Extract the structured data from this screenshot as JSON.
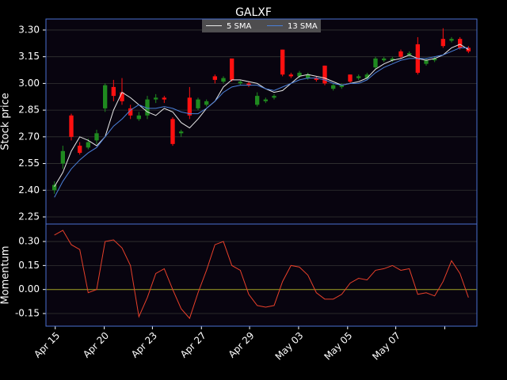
{
  "chart_data": [
    {
      "type": "candlestick",
      "title": "GALXF",
      "ylabel": "Stock price",
      "x": [
        0,
        1,
        2,
        3,
        4,
        5,
        6,
        7,
        8,
        9,
        10,
        11,
        12,
        13,
        14,
        15,
        16,
        17,
        18,
        19,
        20,
        21,
        22,
        23,
        24,
        25,
        26,
        27,
        28,
        29,
        30,
        31,
        32,
        33,
        34,
        35,
        36,
        37,
        38,
        39,
        40,
        41,
        42,
        43,
        44,
        45,
        46,
        47,
        48,
        49
      ],
      "open": [
        2.4,
        2.55,
        2.82,
        2.65,
        2.64,
        2.68,
        2.86,
        2.98,
        2.95,
        2.86,
        2.8,
        2.82,
        2.91,
        2.92,
        2.8,
        2.72,
        2.92,
        2.86,
        2.88,
        3.04,
        3.01,
        3.14,
        3.0,
        3.0,
        2.88,
        2.9,
        2.92,
        3.19,
        3.05,
        3.04,
        3.03,
        3.03,
        3.1,
        2.97,
        2.98,
        3.05,
        3.03,
        3.03,
        3.09,
        3.13,
        3.13,
        3.18,
        3.16,
        3.22,
        3.11,
        3.13,
        3.25,
        3.24,
        3.25,
        3.2
      ],
      "high": [
        2.45,
        2.65,
        2.83,
        2.67,
        2.69,
        2.74,
        3.0,
        3.02,
        3.03,
        2.88,
        2.84,
        2.93,
        2.94,
        2.93,
        2.81,
        2.74,
        2.98,
        2.92,
        2.91,
        3.05,
        3.04,
        3.14,
        3.02,
        3.01,
        2.95,
        2.92,
        2.94,
        3.19,
        3.06,
        3.07,
        3.06,
        3.04,
        3.1,
        3.0,
        3.0,
        3.05,
        3.05,
        3.06,
        3.15,
        3.15,
        3.15,
        3.19,
        3.18,
        3.26,
        3.14,
        3.15,
        3.31,
        3.26,
        3.26,
        3.21
      ],
      "low": [
        2.38,
        2.52,
        2.68,
        2.6,
        2.63,
        2.66,
        2.84,
        2.9,
        2.88,
        2.8,
        2.79,
        2.8,
        2.89,
        2.89,
        2.65,
        2.7,
        2.8,
        2.85,
        2.87,
        3.0,
        3.0,
        3.01,
        2.99,
        2.98,
        2.87,
        2.89,
        2.91,
        3.04,
        3.03,
        3.03,
        3.02,
        3.01,
        2.99,
        2.96,
        2.97,
        3.0,
        3.02,
        3.02,
        3.08,
        3.12,
        3.12,
        3.14,
        3.15,
        3.05,
        3.1,
        3.12,
        3.2,
        3.23,
        3.19,
        3.17
      ],
      "close": [
        2.43,
        2.62,
        2.7,
        2.61,
        2.67,
        2.72,
        2.99,
        2.93,
        2.9,
        2.82,
        2.82,
        2.91,
        2.92,
        2.91,
        2.66,
        2.73,
        2.82,
        2.91,
        2.9,
        3.02,
        3.03,
        3.02,
        3.01,
        2.99,
        2.93,
        2.91,
        2.93,
        3.05,
        3.04,
        3.06,
        3.05,
        3.02,
        3.0,
        2.99,
        2.99,
        3.01,
        3.04,
        3.05,
        3.14,
        3.14,
        3.14,
        3.15,
        3.17,
        3.06,
        3.13,
        3.14,
        3.21,
        3.25,
        3.2,
        3.18
      ],
      "up_color": "#1f8a1f",
      "down_color": "#ff1010",
      "series": [
        {
          "name": "5 SMA",
          "color": "#e8e8e8",
          "values": [
            2.42,
            2.5,
            2.62,
            2.7,
            2.68,
            2.65,
            2.7,
            2.85,
            2.95,
            2.92,
            2.88,
            2.84,
            2.82,
            2.86,
            2.84,
            2.78,
            2.75,
            2.8,
            2.86,
            2.9,
            2.98,
            3.02,
            3.02,
            3.01,
            3.0,
            2.97,
            2.95,
            2.96,
            3.0,
            3.04,
            3.05,
            3.04,
            3.03,
            3.01,
            2.99,
            3.0,
            3.01,
            3.03,
            3.08,
            3.11,
            3.13,
            3.14,
            3.16,
            3.14,
            3.13,
            3.14,
            3.16,
            3.2,
            3.22,
            3.19
          ]
        },
        {
          "name": "13 SMA",
          "color": "#4a7fd8",
          "values": [
            2.36,
            2.45,
            2.52,
            2.57,
            2.61,
            2.64,
            2.7,
            2.76,
            2.8,
            2.85,
            2.88,
            2.86,
            2.86,
            2.87,
            2.86,
            2.84,
            2.83,
            2.83,
            2.86,
            2.9,
            2.95,
            2.98,
            2.99,
            2.99,
            2.99,
            2.97,
            2.96,
            2.98,
            3.0,
            3.02,
            3.03,
            3.03,
            3.02,
            3.0,
            2.99,
            3.0,
            3.0,
            3.02,
            3.06,
            3.09,
            3.11,
            3.13,
            3.14,
            3.14,
            3.14,
            3.15,
            3.16,
            3.18,
            3.2,
            3.2
          ]
        }
      ],
      "legend": "upper center",
      "grid": true,
      "xlim": [
        -1,
        50
      ],
      "ylim": [
        2.21,
        3.362
      ],
      "yticks": [
        2.25,
        {
          "value": 2.4,
          "label": "2.40"
        },
        2.55,
        {
          "value": 2.7,
          "label": "2.70"
        },
        2.85,
        {
          "value": 3.0,
          "label": "3.00"
        },
        3.15,
        {
          "value": 3.3,
          "label": "3.30"
        }
      ]
    },
    {
      "type": "line",
      "ylabel": "Momentum",
      "series": [
        {
          "name": "Momentum",
          "color": "#e8402a",
          "values": [
            0.34,
            0.37,
            0.28,
            0.25,
            -0.02,
            0.0,
            0.3,
            0.31,
            0.26,
            0.15,
            -0.17,
            -0.05,
            0.1,
            0.13,
            0.0,
            -0.12,
            -0.18,
            -0.02,
            0.12,
            0.28,
            0.3,
            0.15,
            0.12,
            -0.03,
            -0.1,
            -0.11,
            -0.1,
            0.05,
            0.15,
            0.14,
            0.09,
            -0.02,
            -0.06,
            -0.06,
            -0.03,
            0.04,
            0.07,
            0.06,
            0.12,
            0.13,
            0.15,
            0.12,
            0.13,
            -0.03,
            -0.02,
            -0.04,
            0.05,
            0.18,
            0.1,
            -0.05
          ]
        }
      ],
      "reference_line": {
        "value": 0,
        "color": "#9a9a20"
      },
      "grid": true,
      "xticks": [
        {
          "value": 0.1,
          "label": "Apr 15"
        },
        {
          "value": 5.9,
          "label": "Apr 20"
        },
        {
          "value": 11.6,
          "label": "Apr 23"
        },
        {
          "value": 17.4,
          "label": "Apr 27"
        },
        {
          "value": 23.1,
          "label": "Apr 29"
        },
        {
          "value": 28.9,
          "label": "May 03"
        },
        {
          "value": 34.7,
          "label": "May 05"
        },
        {
          "value": 40.4,
          "label": "May 07"
        },
        {
          "value": 46.2,
          "label": null
        }
      ],
      "ylim": [
        -0.229,
        0.409
      ],
      "yticks": [
        -0.15,
        {
          "value": 0.0,
          "label": "0.00"
        },
        0.15,
        {
          "value": 0.3,
          "label": "0.30"
        }
      ]
    }
  ]
}
